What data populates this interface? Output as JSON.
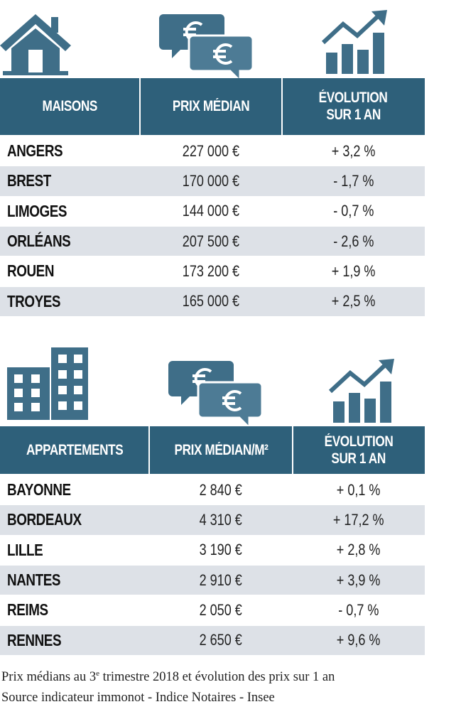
{
  "tables": [
    {
      "headers": [
        [
          "MAISONS"
        ],
        [
          "PRIX MÉDIAN"
        ],
        [
          "ÉVOLUTION",
          "SUR 1 AN"
        ]
      ],
      "rows": [
        [
          "ANGERS",
          "227 000 €",
          "+ 3,2 %"
        ],
        [
          "BREST",
          "170 000 €",
          "- 1,7 %"
        ],
        [
          "LIMOGES",
          "144 000 €",
          "- 0,7 %"
        ],
        [
          "ORLÉANS",
          "207 500 €",
          "- 2,6 %"
        ],
        [
          "ROUEN",
          "173 200 €",
          "+ 1,9 %"
        ],
        [
          "TROYES",
          "165 000 €",
          "+ 2,5 %"
        ]
      ]
    },
    {
      "headers": [
        [
          "APPARTEMENTS"
        ],
        [
          "PRIX MÉDIAN/M²"
        ],
        [
          "ÉVOLUTION",
          "SUR 1 AN"
        ]
      ],
      "rows": [
        [
          "BAYONNE",
          "2 840 €",
          "+ 0,1 %"
        ],
        [
          "BORDEAUX",
          "4 310 €",
          "+ 17,2 %"
        ],
        [
          "LILLE",
          "3 190 €",
          "+ 2,8 %"
        ],
        [
          "NANTES",
          "2 910 €",
          "+ 3,9 %"
        ],
        [
          "REIMS",
          "2 050 €",
          "- 0,7 %"
        ],
        [
          "RENNES",
          "2 650 €",
          "+ 9,6 %"
        ]
      ]
    }
  ],
  "footnote": {
    "line1": [
      "Prix médians au 3",
      "e",
      " trimestre 2018 et évolution des prix sur 1 an"
    ],
    "line2": "Source indicateur immonot - Indice Notaires - Insee"
  }
}
